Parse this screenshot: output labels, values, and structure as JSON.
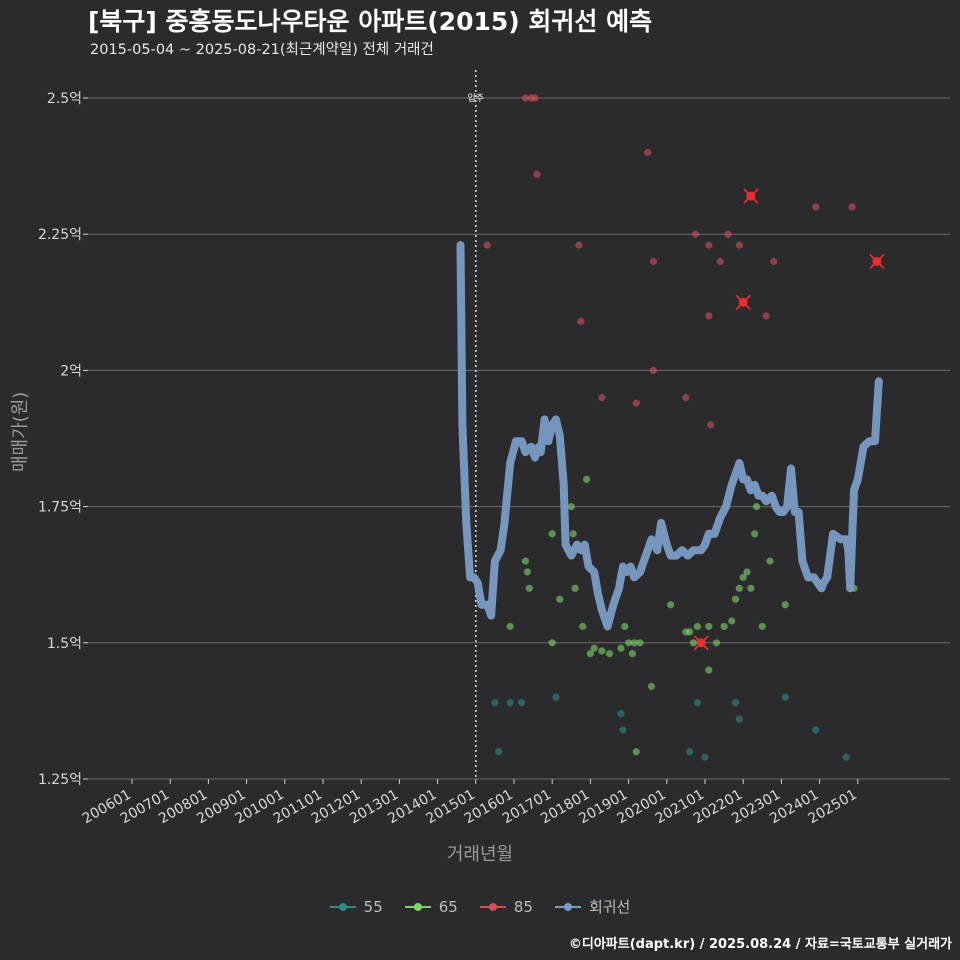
{
  "title": "[북구] 중흥동도나우타운 아파트(2015) 회귀선 예측",
  "subtitle": "2015-05-04 ~ 2025-08-21(최근계약일) 전체 거래건",
  "footer": "©디아파트(dapt.kr) / 2025.08.24 / 자료=국토교통부 실거래가",
  "chart_data": {
    "type": "scatter",
    "xlabel": "거래년월",
    "ylabel": "매매가(원)",
    "x_ticks": [
      "200601",
      "200701",
      "200801",
      "200901",
      "201001",
      "201101",
      "201201",
      "201301",
      "201401",
      "201501",
      "201601",
      "201701",
      "201801",
      "201901",
      "202001",
      "202101",
      "202201",
      "202301",
      "202401",
      "202501"
    ],
    "y_ticks": [
      {
        "value": 1.25,
        "label": "1.25억"
      },
      {
        "value": 1.5,
        "label": "1.5억"
      },
      {
        "value": 1.75,
        "label": "1.75억"
      },
      {
        "value": 2.0,
        "label": "2억"
      },
      {
        "value": 2.25,
        "label": "2.25억"
      },
      {
        "value": 2.5,
        "label": "2.5억"
      }
    ],
    "ylim": [
      1.25,
      2.5
    ],
    "grid": true,
    "vline": {
      "x": 2015.0,
      "label": "입주"
    },
    "legend_position": "bottom",
    "colors": {
      "55": "#2e8b87",
      "65": "#7fd36a",
      "85": "#d0505a",
      "trend": "#7a9cc6"
    },
    "series": [
      {
        "name": "55",
        "points": [
          [
            2015.5,
            1.39
          ],
          [
            2015.6,
            1.3
          ],
          [
            2015.9,
            1.39
          ],
          [
            2016.2,
            1.39
          ],
          [
            2017.1,
            1.4
          ],
          [
            2018.8,
            1.37
          ],
          [
            2018.85,
            1.34
          ],
          [
            2020.6,
            1.3
          ],
          [
            2020.8,
            1.39
          ],
          [
            2021.0,
            1.29
          ],
          [
            2021.8,
            1.39
          ],
          [
            2021.9,
            1.36
          ],
          [
            2023.1,
            1.4
          ],
          [
            2023.9,
            1.34
          ],
          [
            2024.7,
            1.29
          ]
        ]
      },
      {
        "name": "65",
        "points": [
          [
            2015.9,
            1.53
          ],
          [
            2016.3,
            1.65
          ],
          [
            2016.35,
            1.63
          ],
          [
            2016.4,
            1.6
          ],
          [
            2017.0,
            1.7
          ],
          [
            2017.0,
            1.5
          ],
          [
            2017.2,
            1.58
          ],
          [
            2017.5,
            1.75
          ],
          [
            2017.55,
            1.7
          ],
          [
            2017.6,
            1.6
          ],
          [
            2017.8,
            1.53
          ],
          [
            2017.9,
            1.8
          ],
          [
            2018.0,
            1.48
          ],
          [
            2018.1,
            1.49
          ],
          [
            2018.3,
            1.485
          ],
          [
            2018.5,
            1.48
          ],
          [
            2018.8,
            1.49
          ],
          [
            2018.9,
            1.53
          ],
          [
            2019.0,
            1.5
          ],
          [
            2019.1,
            1.48
          ],
          [
            2019.15,
            1.5
          ],
          [
            2019.2,
            1.3
          ],
          [
            2019.3,
            1.5
          ],
          [
            2019.6,
            1.42
          ],
          [
            2020.1,
            1.57
          ],
          [
            2020.5,
            1.52
          ],
          [
            2020.6,
            1.52
          ],
          [
            2020.7,
            1.5
          ],
          [
            2020.8,
            1.53
          ],
          [
            2020.9,
            1.5
          ],
          [
            2021.1,
            1.45
          ],
          [
            2021.1,
            1.53
          ],
          [
            2021.3,
            1.5
          ],
          [
            2021.5,
            1.53
          ],
          [
            2021.7,
            1.54
          ],
          [
            2021.8,
            1.58
          ],
          [
            2021.9,
            1.6
          ],
          [
            2022.0,
            1.62
          ],
          [
            2022.1,
            1.63
          ],
          [
            2022.2,
            1.6
          ],
          [
            2022.3,
            1.7
          ],
          [
            2022.35,
            1.75
          ],
          [
            2022.5,
            1.53
          ],
          [
            2022.7,
            1.65
          ],
          [
            2023.1,
            1.57
          ],
          [
            2024.8,
            1.6
          ],
          [
            2024.9,
            1.6
          ]
        ]
      },
      {
        "name": "85",
        "points": [
          [
            2015.3,
            2.23
          ],
          [
            2016.3,
            2.5
          ],
          [
            2016.45,
            2.5
          ],
          [
            2016.55,
            2.5
          ],
          [
            2016.6,
            2.36
          ],
          [
            2017.7,
            2.23
          ],
          [
            2017.75,
            2.09
          ],
          [
            2018.3,
            1.95
          ],
          [
            2019.2,
            1.94
          ],
          [
            2019.5,
            2.4
          ],
          [
            2019.65,
            2.2
          ],
          [
            2019.65,
            2.0
          ],
          [
            2020.5,
            1.95
          ],
          [
            2020.75,
            2.25
          ],
          [
            2021.1,
            2.23
          ],
          [
            2021.1,
            2.1
          ],
          [
            2021.15,
            1.9
          ],
          [
            2021.4,
            2.2
          ],
          [
            2021.6,
            2.25
          ],
          [
            2021.9,
            2.23
          ],
          [
            2022.6,
            2.1
          ],
          [
            2022.8,
            2.2
          ],
          [
            2023.9,
            2.3
          ],
          [
            2024.85,
            2.3
          ]
        ]
      },
      {
        "name": "85-highlight",
        "points": [
          [
            2022.2,
            2.32
          ],
          [
            2022.0,
            2.125
          ],
          [
            2020.9,
            1.5
          ],
          [
            2025.5,
            2.2
          ]
        ]
      }
    ],
    "trend": {
      "name": "회귀선",
      "x": [
        2014.6,
        2014.65,
        2014.75,
        2014.85,
        2014.95,
        2015.05,
        2015.15,
        2015.3,
        2015.4,
        2015.5,
        2015.65,
        2015.75,
        2015.9,
        2016.05,
        2016.2,
        2016.3,
        2016.45,
        2016.55,
        2016.65,
        2016.7,
        2016.8,
        2016.9,
        2017.0,
        2017.1,
        2017.2,
        2017.3,
        2017.35,
        2017.5,
        2017.65,
        2017.75,
        2017.85,
        2017.95,
        2018.1,
        2018.2,
        2018.3,
        2018.45,
        2018.6,
        2018.75,
        2018.85,
        2018.95,
        2019.05,
        2019.15,
        2019.3,
        2019.45,
        2019.6,
        2019.75,
        2019.85,
        2020.0,
        2020.1,
        2020.25,
        2020.4,
        2020.55,
        2020.7,
        2020.8,
        2020.9,
        2021.0,
        2021.1,
        2021.25,
        2021.4,
        2021.55,
        2021.7,
        2021.8,
        2021.9,
        2022.0,
        2022.1,
        2022.2,
        2022.3,
        2022.4,
        2022.5,
        2022.6,
        2022.75,
        2022.85,
        2022.95,
        2023.05,
        2023.15,
        2023.25,
        2023.35,
        2023.45,
        2023.55,
        2023.7,
        2023.85,
        2023.95,
        2024.05,
        2024.1,
        2024.2,
        2024.35,
        2024.55,
        2024.7,
        2024.75,
        2024.8,
        2024.9,
        2025.0,
        2025.15,
        2025.3,
        2025.45,
        2025.55
      ],
      "y": [
        2.23,
        1.9,
        1.72,
        1.62,
        1.62,
        1.61,
        1.57,
        1.57,
        1.55,
        1.65,
        1.67,
        1.72,
        1.83,
        1.87,
        1.87,
        1.85,
        1.86,
        1.84,
        1.86,
        1.85,
        1.91,
        1.87,
        1.9,
        1.91,
        1.88,
        1.79,
        1.68,
        1.66,
        1.68,
        1.67,
        1.68,
        1.64,
        1.63,
        1.59,
        1.56,
        1.53,
        1.57,
        1.6,
        1.64,
        1.63,
        1.64,
        1.62,
        1.63,
        1.66,
        1.69,
        1.67,
        1.72,
        1.68,
        1.66,
        1.66,
        1.67,
        1.66,
        1.67,
        1.67,
        1.67,
        1.68,
        1.7,
        1.7,
        1.73,
        1.75,
        1.79,
        1.81,
        1.83,
        1.8,
        1.8,
        1.78,
        1.79,
        1.77,
        1.77,
        1.76,
        1.77,
        1.75,
        1.74,
        1.74,
        1.75,
        1.82,
        1.74,
        1.74,
        1.65,
        1.62,
        1.62,
        1.61,
        1.6,
        1.61,
        1.62,
        1.7,
        1.69,
        1.69,
        1.67,
        1.6,
        1.78,
        1.8,
        1.86,
        1.87,
        1.87,
        1.98
      ]
    },
    "legend": [
      {
        "key": "55",
        "label": "55"
      },
      {
        "key": "65",
        "label": "65"
      },
      {
        "key": "85",
        "label": "85"
      },
      {
        "key": "trend",
        "label": "회귀선"
      }
    ]
  }
}
